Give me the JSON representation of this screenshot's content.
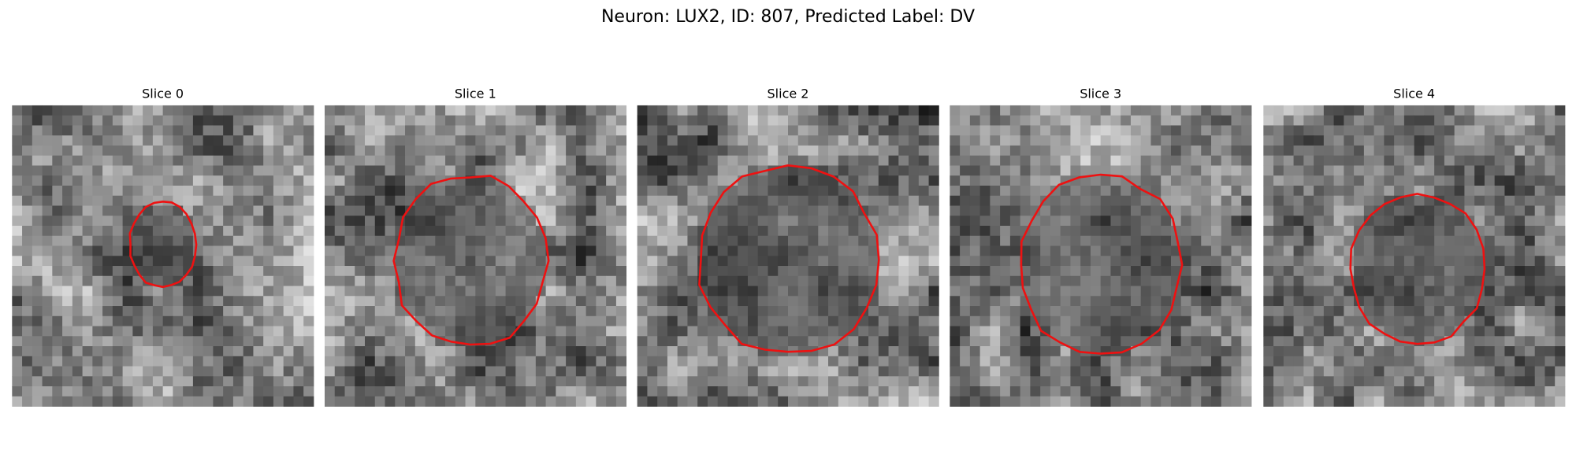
{
  "title": "Neuron: LUX2, ID: 807, Predicted Label: DV",
  "panels": [
    {
      "title": "Slice 0"
    },
    {
      "title": "Slice 1"
    },
    {
      "title": "Slice 2"
    },
    {
      "title": "Slice 3"
    },
    {
      "title": "Slice 4"
    }
  ]
}
